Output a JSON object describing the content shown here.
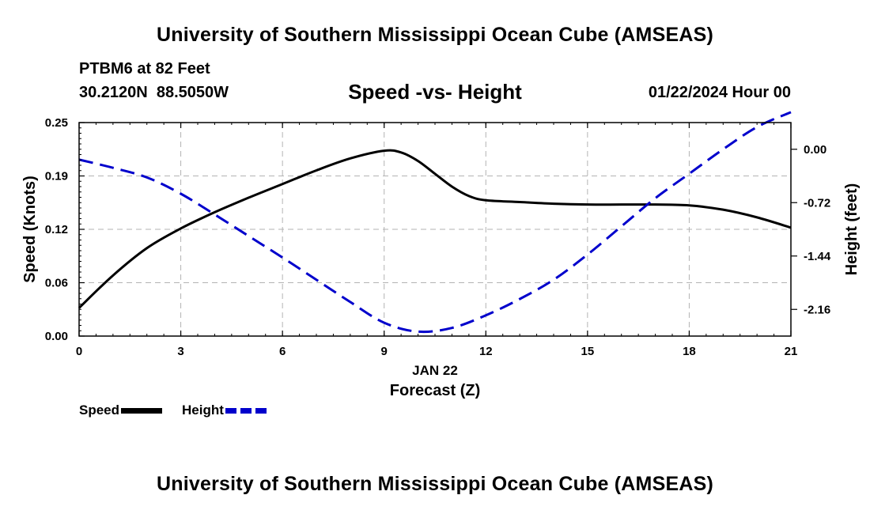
{
  "header": {
    "title": "University of Southern Mississippi Ocean Cube (AMSEAS)",
    "station": "PTBM6 at 82 Feet",
    "coordinates": "30.2120N  88.5050W",
    "date": "01/22/2024 Hour 00"
  },
  "footer": {
    "title": "University of Southern Mississippi Ocean Cube (AMSEAS)"
  },
  "chart_data": {
    "type": "line",
    "title": "Speed -vs- Height",
    "xlabel": "Forecast (Z)",
    "xdate_label": "JAN 22",
    "ylabel_left": "Speed (Knots)",
    "ylabel_right": "Height (feet)",
    "xlim": [
      0,
      21
    ],
    "ylim_left": [
      0,
      0.25
    ],
    "ylim_right": [
      -2.52,
      0.36
    ],
    "x_ticks": [
      0,
      3,
      6,
      9,
      12,
      15,
      18,
      21
    ],
    "x_tick_labels": [
      "0",
      "3",
      "6",
      "9",
      "12",
      "15",
      "18",
      "21"
    ],
    "y_left_ticks": [
      0,
      0.0625,
      0.125,
      0.1875,
      0.25
    ],
    "y_left_tick_labels": [
      "0.00",
      "0.06",
      "0.12",
      "0.19",
      "0.25"
    ],
    "y_right_ticks": [
      0.0,
      -0.72,
      -1.44,
      -2.16
    ],
    "y_right_tick_labels": [
      "0.00",
      "-0.72",
      "-1.44",
      "-2.16"
    ],
    "grid": true,
    "series": [
      {
        "name": "Speed",
        "axis": "left",
        "color": "#000000",
        "style": "solid",
        "x": [
          0,
          1,
          2,
          3,
          4,
          5,
          6,
          7,
          8,
          9,
          9.5,
          10,
          10.5,
          11,
          11.5,
          12,
          13,
          14,
          15,
          16,
          17,
          18,
          19,
          20,
          21
        ],
        "y": [
          0.033,
          0.071,
          0.103,
          0.126,
          0.145,
          0.162,
          0.178,
          0.194,
          0.208,
          0.217,
          0.215,
          0.205,
          0.19,
          0.175,
          0.164,
          0.159,
          0.157,
          0.155,
          0.154,
          0.154,
          0.154,
          0.153,
          0.148,
          0.139,
          0.127
        ]
      },
      {
        "name": "Height",
        "axis": "right",
        "color": "#0000cc",
        "style": "dashed",
        "x": [
          0,
          1,
          2,
          3,
          4,
          5,
          6,
          7,
          8,
          9,
          10,
          11,
          12,
          13,
          14,
          15,
          16,
          17,
          18,
          19,
          20,
          21
        ],
        "y": [
          -0.14,
          -0.25,
          -0.38,
          -0.6,
          -0.88,
          -1.17,
          -1.46,
          -1.76,
          -2.06,
          -2.34,
          -2.46,
          -2.41,
          -2.24,
          -2.02,
          -1.76,
          -1.42,
          -1.04,
          -0.66,
          -0.33,
          0.0,
          0.3,
          0.5
        ]
      }
    ],
    "legend": [
      "Speed",
      "Height"
    ]
  }
}
